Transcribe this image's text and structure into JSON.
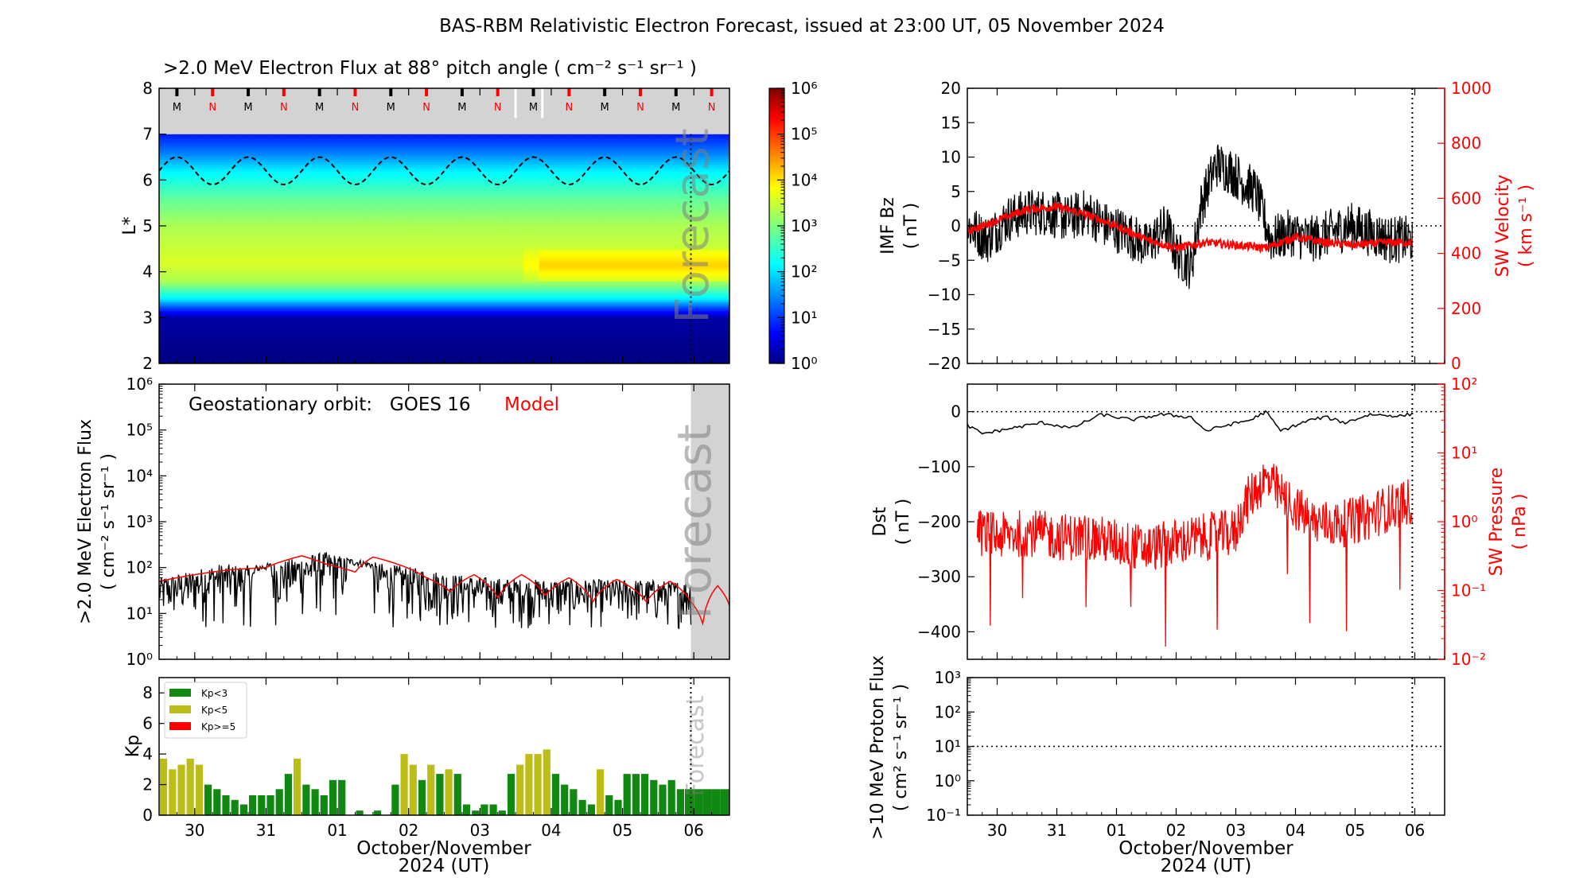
{
  "title": "BAS-RBM Relativistic Electron Forecast, issued at 23:00 UT, 05 November 2024",
  "colors": {
    "obs": "#000000",
    "model": "#ff0000",
    "kp_low": "#118811",
    "kp_mid": "#bdbd17",
    "kp_high": "#ff0000",
    "forecast_shade": "#d3d3d3",
    "sw_axis": "#ff0000"
  },
  "time_axis": {
    "start": "2024-10-29T12:00",
    "end": "2024-11-06T12:00",
    "forecast_start": "2024-11-05T23:00",
    "tick_days": [
      "30",
      "31",
      "01",
      "02",
      "03",
      "04",
      "05",
      "06"
    ],
    "xlabel_line1": "October/November",
    "xlabel_line2": "2024 (UT)"
  },
  "chart_data": [
    {
      "id": "lstar_flux",
      "type": "heatmap",
      "title": ">2.0 MeV Electron Flux at 88° pitch angle ( cm⁻² s⁻¹ sr⁻¹ )",
      "ylabel": "L*",
      "ylim": [
        2,
        8
      ],
      "yticks": [
        "2",
        "3",
        "4",
        "5",
        "6",
        "7",
        "8"
      ],
      "colorbar": {
        "scale": "log",
        "range": [
          1,
          1000000
        ],
        "tick_labels": [
          "10⁰",
          "10¹",
          "10²",
          "10³",
          "10⁴",
          "10⁵",
          "10⁶"
        ]
      },
      "watermark": "Forecast",
      "mn_markers": [
        "M",
        "N",
        "M",
        "N",
        "M",
        "N",
        "M",
        "N",
        "M",
        "N",
        "M",
        "N",
        "M",
        "N",
        "M",
        "N"
      ],
      "profile_by_lstar": [
        {
          "L": 2.0,
          "log_flux": 0.0
        },
        {
          "L": 3.0,
          "log_flux": 0.2
        },
        {
          "L": 3.2,
          "log_flux": 1.0
        },
        {
          "L": 3.4,
          "log_flux": 2.0
        },
        {
          "L": 3.8,
          "log_flux": 3.3
        },
        {
          "L": 4.2,
          "log_flux": 3.6
        },
        {
          "L": 5.0,
          "log_flux": 3.3
        },
        {
          "L": 5.6,
          "log_flux": 2.8
        },
        {
          "L": 6.2,
          "log_flux": 2.1
        },
        {
          "L": 6.6,
          "log_flux": 1.4
        },
        {
          "L": 7.0,
          "log_flux": 0.8
        }
      ],
      "enhanced_region": {
        "start": "2024-11-03T12:00",
        "L_range": [
          3.8,
          4.5
        ],
        "log_flux": 4.1
      },
      "geo_orbit_L_range": [
        5.9,
        6.5
      ]
    },
    {
      "id": "geo_flux",
      "type": "line",
      "ylabel_line1": ">2.0 MeV Electron Flux",
      "ylabel_line2": "( cm⁻² s⁻¹ sr⁻¹ )",
      "yscale": "log",
      "ylim": [
        1,
        1000000
      ],
      "ytick_labels": [
        "10⁰",
        "10¹",
        "10²",
        "10³",
        "10⁴",
        "10⁵",
        "10⁶"
      ],
      "annotation_text": "Geostationary orbit:   GOES 16",
      "annotation_model": "Model",
      "watermark": "Forecast",
      "series": [
        {
          "name": "GOES 16",
          "points": [
            [
              "2024-10-29T12:00",
              60
            ],
            [
              "2024-10-29T22:00",
              80
            ],
            [
              "2024-10-30T08:00",
              120
            ],
            [
              "2024-10-30T20:00",
              110
            ],
            [
              "2024-10-31T08:00",
              150
            ],
            [
              "2024-10-31T20:00",
              220
            ],
            [
              "2024-11-01T04:00",
              160
            ],
            [
              "2024-11-01T16:00",
              120
            ],
            [
              "2024-11-02T04:00",
              95
            ],
            [
              "2024-11-02T16:00",
              70
            ],
            [
              "2024-11-03T04:00",
              60
            ],
            [
              "2024-11-03T16:00",
              55
            ],
            [
              "2024-11-04T04:00",
              55
            ],
            [
              "2024-11-04T16:00",
              55
            ],
            [
              "2024-11-05T04:00",
              55
            ],
            [
              "2024-11-05T22:00",
              50
            ]
          ],
          "floor": 4.5
        },
        {
          "name": "Model",
          "points": [
            [
              "2024-10-29T12:00",
              50
            ],
            [
              "2024-10-30T00:00",
              70
            ],
            [
              "2024-10-30T12:00",
              90
            ],
            [
              "2024-10-31T00:00",
              100
            ],
            [
              "2024-10-31T12:00",
              180
            ],
            [
              "2024-10-31T20:00",
              120
            ],
            [
              "2024-11-01T06:00",
              80
            ],
            [
              "2024-11-01T12:00",
              170
            ],
            [
              "2024-11-01T20:00",
              120
            ],
            [
              "2024-11-02T06:00",
              60
            ],
            [
              "2024-11-02T14:00",
              30
            ],
            [
              "2024-11-02T22:00",
              70
            ],
            [
              "2024-11-03T06:00",
              22
            ],
            [
              "2024-11-03T14:00",
              70
            ],
            [
              "2024-11-03T22:00",
              25
            ],
            [
              "2024-11-04T06:00",
              60
            ],
            [
              "2024-11-04T14:00",
              18
            ],
            [
              "2024-11-04T22:00",
              55
            ],
            [
              "2024-11-05T08:00",
              18
            ],
            [
              "2024-11-05T16:00",
              50
            ],
            [
              "2024-11-05T23:00",
              18
            ],
            [
              "2024-11-06T03:00",
              6
            ],
            [
              "2024-11-06T08:00",
              40
            ],
            [
              "2024-11-06T12:00",
              15
            ]
          ]
        }
      ]
    },
    {
      "id": "kp",
      "type": "bar",
      "ylabel": "Kp",
      "ylim": [
        0,
        9
      ],
      "yticks": [
        "0",
        "2",
        "4",
        "6",
        "8"
      ],
      "legend": [
        "Kp<3",
        "Kp<5",
        "Kp>=5"
      ],
      "watermark": "Forecast",
      "bin_hours": 3,
      "values": [
        3.7,
        3.0,
        3.3,
        3.7,
        3.3,
        2.0,
        1.7,
        1.3,
        1.0,
        0.7,
        1.3,
        1.3,
        1.3,
        1.7,
        2.7,
        3.7,
        2.0,
        1.7,
        1.3,
        2.3,
        2.3,
        0,
        0.3,
        0,
        0.3,
        0,
        2.0,
        4.0,
        3.3,
        2.3,
        3.3,
        2.7,
        3.0,
        2.7,
        0.7,
        0.3,
        0.7,
        0.7,
        0.3,
        2.7,
        3.3,
        4.0,
        4.0,
        4.3,
        2.7,
        2.0,
        1.7,
        1.0,
        0.7,
        3.0,
        1.3,
        1.0,
        2.7,
        2.7,
        2.7,
        2.3,
        2.0,
        2.3,
        1.7,
        1.7,
        1.7,
        1.7,
        1.7,
        1.7,
        1.7
      ]
    },
    {
      "id": "imf_vsw",
      "type": "line",
      "ylabel_left_line1": "IMF Bz",
      "ylabel_left_line2": "( nT )",
      "ylim_left": [
        -20,
        20
      ],
      "yticks_left": [
        "−20",
        "−15",
        "−10",
        "−5",
        "0",
        "5",
        "10",
        "15",
        "20"
      ],
      "ylabel_right_line1": "SW Velocity",
      "ylabel_right_line2": "( km s⁻¹ )",
      "ylim_right": [
        0,
        1000
      ],
      "yticks_right": [
        "0",
        "200",
        "400",
        "600",
        "800",
        "1000"
      ],
      "series": [
        {
          "name": "IMF Bz",
          "points": [
            [
              "2024-10-29T12:00",
              0
            ],
            [
              "2024-10-29T20:00",
              -2
            ],
            [
              "2024-10-30T04:00",
              1
            ],
            [
              "2024-10-30T12:00",
              2
            ],
            [
              "2024-10-30T20:00",
              2
            ],
            [
              "2024-10-31T04:00",
              1
            ],
            [
              "2024-10-31T12:00",
              2
            ],
            [
              "2024-10-31T20:00",
              0
            ],
            [
              "2024-11-01T04:00",
              -1
            ],
            [
              "2024-11-01T12:00",
              -3
            ],
            [
              "2024-11-01T20:00",
              0
            ],
            [
              "2024-11-02T00:00",
              -4
            ],
            [
              "2024-11-02T06:00",
              -6
            ],
            [
              "2024-11-02T10:00",
              3
            ],
            [
              "2024-11-02T16:00",
              9
            ],
            [
              "2024-11-02T22:00",
              8
            ],
            [
              "2024-11-03T04:00",
              6
            ],
            [
              "2024-11-03T08:00",
              5
            ],
            [
              "2024-11-03T14:00",
              -2
            ],
            [
              "2024-11-03T22:00",
              -1
            ],
            [
              "2024-11-04T06:00",
              -2
            ],
            [
              "2024-11-04T14:00",
              -1
            ],
            [
              "2024-11-04T22:00",
              0
            ],
            [
              "2024-11-05T06:00",
              -1
            ],
            [
              "2024-11-05T14:00",
              -2
            ],
            [
              "2024-11-05T22:00",
              -2
            ]
          ],
          "noise": 3.5
        },
        {
          "name": "SW Velocity",
          "points": [
            [
              "2024-10-29T12:00",
              480
            ],
            [
              "2024-10-30T00:00",
              520
            ],
            [
              "2024-10-30T12:00",
              560
            ],
            [
              "2024-10-31T00:00",
              570
            ],
            [
              "2024-10-31T12:00",
              540
            ],
            [
              "2024-11-01T00:00",
              500
            ],
            [
              "2024-11-01T12:00",
              450
            ],
            [
              "2024-11-02T00:00",
              420
            ],
            [
              "2024-11-02T12:00",
              440
            ],
            [
              "2024-11-03T00:00",
              430
            ],
            [
              "2024-11-03T12:00",
              420
            ],
            [
              "2024-11-04T00:00",
              460
            ],
            [
              "2024-11-04T12:00",
              440
            ],
            [
              "2024-11-05T00:00",
              430
            ],
            [
              "2024-11-05T12:00",
              440
            ],
            [
              "2024-11-05T22:00",
              440
            ]
          ],
          "noise": 15
        }
      ]
    },
    {
      "id": "dst_psw",
      "type": "line",
      "ylabel_left_line1": "Dst",
      "ylabel_left_line2": "( nT )",
      "ylim_left": [
        -450,
        50
      ],
      "yticks_left": [
        "0",
        "−100",
        "−200",
        "−300",
        "−400"
      ],
      "ylabel_right_line1": "SW Pressure",
      "ylabel_right_line2": "( nPa )",
      "yscale_right": "log",
      "ylim_right": [
        0.01,
        100
      ],
      "ytick_labels_right": [
        "10⁻²",
        "10⁻¹",
        "10⁰",
        "10¹",
        "10²"
      ],
      "series": [
        {
          "name": "Dst",
          "points": [
            [
              "2024-10-29T12:00",
              -25
            ],
            [
              "2024-10-29T18:00",
              -40
            ],
            [
              "2024-10-30T06:00",
              -30
            ],
            [
              "2024-10-30T18:00",
              -20
            ],
            [
              "2024-10-31T06:00",
              -30
            ],
            [
              "2024-10-31T18:00",
              -5
            ],
            [
              "2024-11-01T06:00",
              -15
            ],
            [
              "2024-11-01T18:00",
              -5
            ],
            [
              "2024-11-02T06:00",
              -10
            ],
            [
              "2024-11-02T12:00",
              -35
            ],
            [
              "2024-11-02T20:00",
              -25
            ],
            [
              "2024-11-03T06:00",
              -15
            ],
            [
              "2024-11-03T12:00",
              0
            ],
            [
              "2024-11-03T18:00",
              -35
            ],
            [
              "2024-11-04T06:00",
              -15
            ],
            [
              "2024-11-04T12:00",
              -10
            ],
            [
              "2024-11-04T20:00",
              -20
            ],
            [
              "2024-11-05T06:00",
              -5
            ],
            [
              "2024-11-05T18:00",
              -8
            ],
            [
              "2024-11-05T22:00",
              -5
            ]
          ]
        },
        {
          "name": "SW Pressure",
          "points": [
            [
              "2024-10-29T12:00",
              0.8
            ],
            [
              "2024-10-30T00:00",
              0.6
            ],
            [
              "2024-10-30T12:00",
              0.7
            ],
            [
              "2024-10-31T00:00",
              0.6
            ],
            [
              "2024-10-31T12:00",
              0.6
            ],
            [
              "2024-11-01T00:00",
              0.5
            ],
            [
              "2024-11-01T12:00",
              0.4
            ],
            [
              "2024-11-02T00:00",
              0.5
            ],
            [
              "2024-11-02T12:00",
              0.6
            ],
            [
              "2024-11-03T00:00",
              0.7
            ],
            [
              "2024-11-03T12:00",
              4.0
            ],
            [
              "2024-11-03T20:00",
              2.0
            ],
            [
              "2024-11-04T06:00",
              1.0
            ],
            [
              "2024-11-04T18:00",
              0.9
            ],
            [
              "2024-11-05T06:00",
              1.2
            ],
            [
              "2024-11-05T22:00",
              2.0
            ]
          ],
          "log_noise": 0.35
        }
      ]
    },
    {
      "id": "proton_flux",
      "type": "line",
      "ylabel_line1": ">10 MeV Proton Flux",
      "ylabel_line2": "( cm² s⁻¹ sr⁻¹ )",
      "yscale": "log",
      "ylim": [
        0.1,
        1000
      ],
      "ytick_labels": [
        "10⁻¹",
        "10⁰",
        "10¹",
        "10²",
        "10³"
      ],
      "threshold": 10,
      "series": []
    }
  ]
}
